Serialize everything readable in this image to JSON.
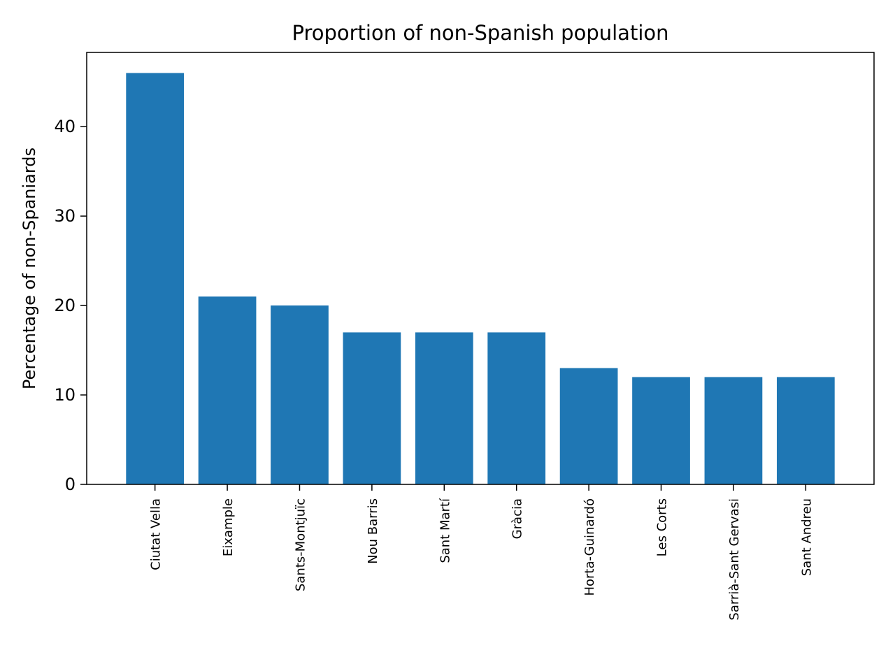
{
  "chart_data": {
    "type": "bar",
    "title": "Proportion of non-Spanish population",
    "xlabel": "",
    "ylabel": "Percentage of non-Spaniards",
    "categories": [
      "Ciutat Vella",
      "Eixample",
      "Sants-Montjuïc",
      "Nou Barris",
      "Sant Martí",
      "Gràcia",
      "Horta-Guinardó",
      "Les Corts",
      "Sarrià-Sant Gervasi",
      "Sant Andreu"
    ],
    "values": [
      46,
      21,
      20,
      17,
      17,
      17,
      13,
      12,
      12,
      12
    ],
    "ylim": [
      0,
      48.3
    ],
    "yticks": [
      "0",
      "10",
      "20",
      "30",
      "40"
    ],
    "grid": false,
    "bar_color": "#1f77b4",
    "x_tick_rotation": "vertical"
  }
}
